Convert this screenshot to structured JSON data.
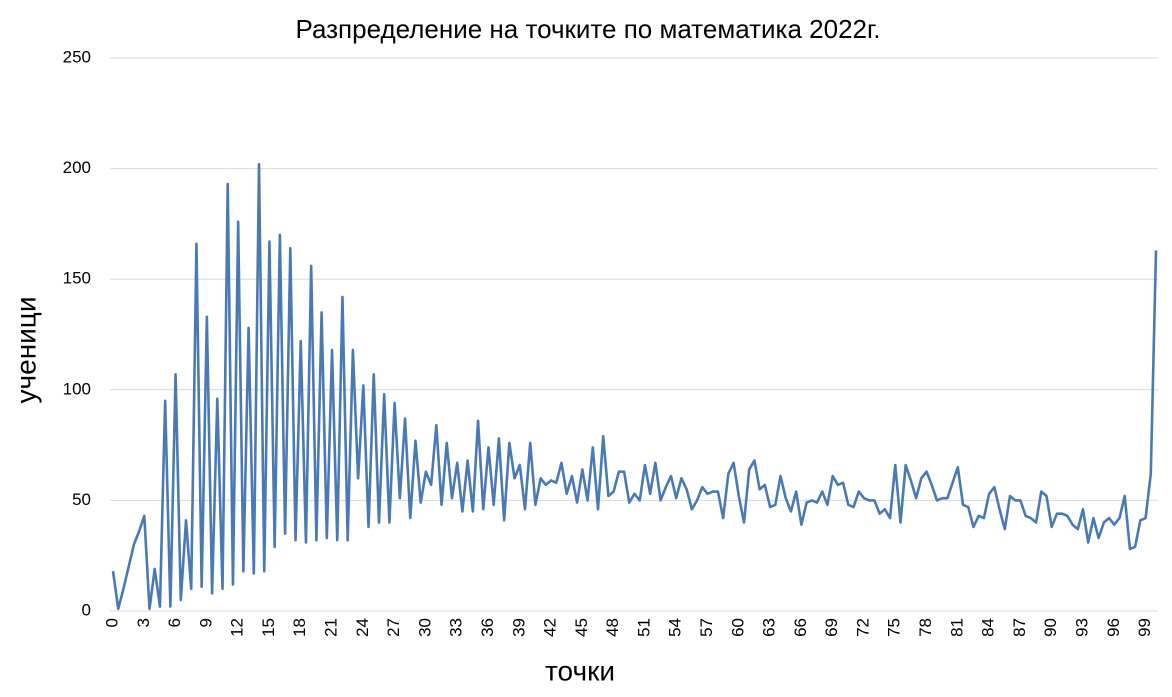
{
  "chart_data": {
    "type": "line",
    "title": "Разпределение на точките по математика 2022г.",
    "x_label": "точки",
    "y_label": "ученици",
    "x": [
      0,
      0.5,
      1,
      1.5,
      2,
      2.5,
      3,
      3.5,
      4,
      4.5,
      5,
      5.5,
      6,
      6.5,
      7,
      7.5,
      8,
      8.5,
      9,
      9.5,
      10,
      10.5,
      11,
      11.5,
      12,
      12.5,
      13,
      13.5,
      14,
      14.5,
      15,
      15.5,
      16,
      16.5,
      17,
      17.5,
      18,
      18.5,
      19,
      19.5,
      20,
      20.5,
      21,
      21.5,
      22,
      22.5,
      23,
      23.5,
      24,
      24.5,
      25,
      25.5,
      26,
      26.5,
      27,
      27.5,
      28,
      28.5,
      29,
      29.5,
      30,
      30.5,
      31,
      31.5,
      32,
      32.5,
      33,
      33.5,
      34,
      34.5,
      35,
      35.5,
      36,
      36.5,
      37,
      37.5,
      38,
      38.5,
      39,
      39.5,
      40,
      40.5,
      41,
      41.5,
      42,
      42.5,
      43,
      43.5,
      44,
      44.5,
      45,
      45.5,
      46,
      46.5,
      47,
      47.5,
      48,
      48.5,
      49,
      49.5,
      50,
      50.5,
      51,
      51.5,
      52,
      52.5,
      53,
      53.5,
      54,
      54.5,
      55,
      55.5,
      56,
      56.5,
      57,
      57.5,
      58,
      58.5,
      59,
      59.5,
      60,
      60.5,
      61,
      61.5,
      62,
      62.5,
      63,
      63.5,
      64,
      64.5,
      65,
      65.5,
      66,
      66.5,
      67,
      67.5,
      68,
      68.5,
      69,
      69.5,
      70,
      70.5,
      71,
      71.5,
      72,
      72.5,
      73,
      73.5,
      74,
      74.5,
      75,
      75.5,
      76,
      76.5,
      77,
      77.5,
      78,
      78.5,
      79,
      79.5,
      80,
      80.5,
      81,
      81.5,
      82,
      82.5,
      83,
      83.5,
      84,
      84.5,
      85,
      85.5,
      86,
      86.5,
      87,
      87.5,
      88,
      88.5,
      89,
      89.5,
      90,
      90.5,
      91,
      91.5,
      92,
      92.5,
      93,
      93.5,
      94,
      94.5,
      95,
      95.5,
      96,
      96.5,
      97,
      97.5,
      98,
      98.5,
      99,
      99.5,
      100
    ],
    "series": [
      {
        "name": "ученици",
        "color": "#4a7ab5",
        "values": [
          18,
          1,
          10,
          20,
          30,
          36,
          43,
          1,
          19,
          2,
          95,
          2,
          107,
          5,
          41,
          10,
          166,
          11,
          133,
          8,
          96,
          10,
          193,
          12,
          176,
          18,
          128,
          17,
          202,
          18,
          167,
          29,
          170,
          35,
          164,
          32,
          122,
          31,
          156,
          32,
          135,
          33,
          118,
          32,
          142,
          32,
          118,
          60,
          102,
          38,
          107,
          40,
          98,
          40,
          94,
          51,
          87,
          42,
          77,
          49,
          63,
          57,
          84,
          48,
          76,
          51,
          67,
          45,
          68,
          45,
          86,
          46,
          74,
          48,
          78,
          41,
          76,
          60,
          66,
          46,
          76,
          48,
          60,
          57,
          59,
          58,
          67,
          53,
          61,
          49,
          64,
          50,
          74,
          46,
          79,
          52,
          54,
          63,
          63,
          49,
          53,
          50,
          66,
          53,
          67,
          50,
          56,
          61,
          51,
          60,
          55,
          46,
          50,
          56,
          53,
          54,
          54,
          42,
          62,
          67,
          52,
          40,
          64,
          68,
          55,
          57,
          47,
          48,
          61,
          51,
          45,
          54,
          39,
          49,
          50,
          49,
          54,
          48,
          61,
          57,
          58,
          48,
          47,
          54,
          51,
          50,
          50,
          44,
          46,
          42,
          66,
          40,
          66,
          59,
          51,
          60,
          63,
          57,
          50,
          51,
          51,
          58,
          65,
          48,
          47,
          38,
          43,
          42,
          53,
          56,
          46,
          37,
          52,
          50,
          50,
          43,
          42,
          40,
          54,
          52,
          38,
          44,
          44,
          43,
          39,
          37,
          46,
          31,
          42,
          33,
          40,
          42,
          39,
          42,
          52,
          28,
          29,
          41,
          42,
          62,
          163
        ]
      }
    ],
    "xlim": [
      0,
      100
    ],
    "xticks": [
      0,
      3,
      6,
      9,
      12,
      15,
      18,
      21,
      24,
      27,
      30,
      33,
      36,
      39,
      42,
      45,
      48,
      51,
      54,
      57,
      60,
      63,
      66,
      69,
      72,
      75,
      78,
      81,
      84,
      87,
      90,
      93,
      96,
      99
    ],
    "ylim": [
      0,
      250
    ],
    "yticks": [
      0,
      50,
      100,
      150,
      200,
      250
    ],
    "grid": true
  }
}
